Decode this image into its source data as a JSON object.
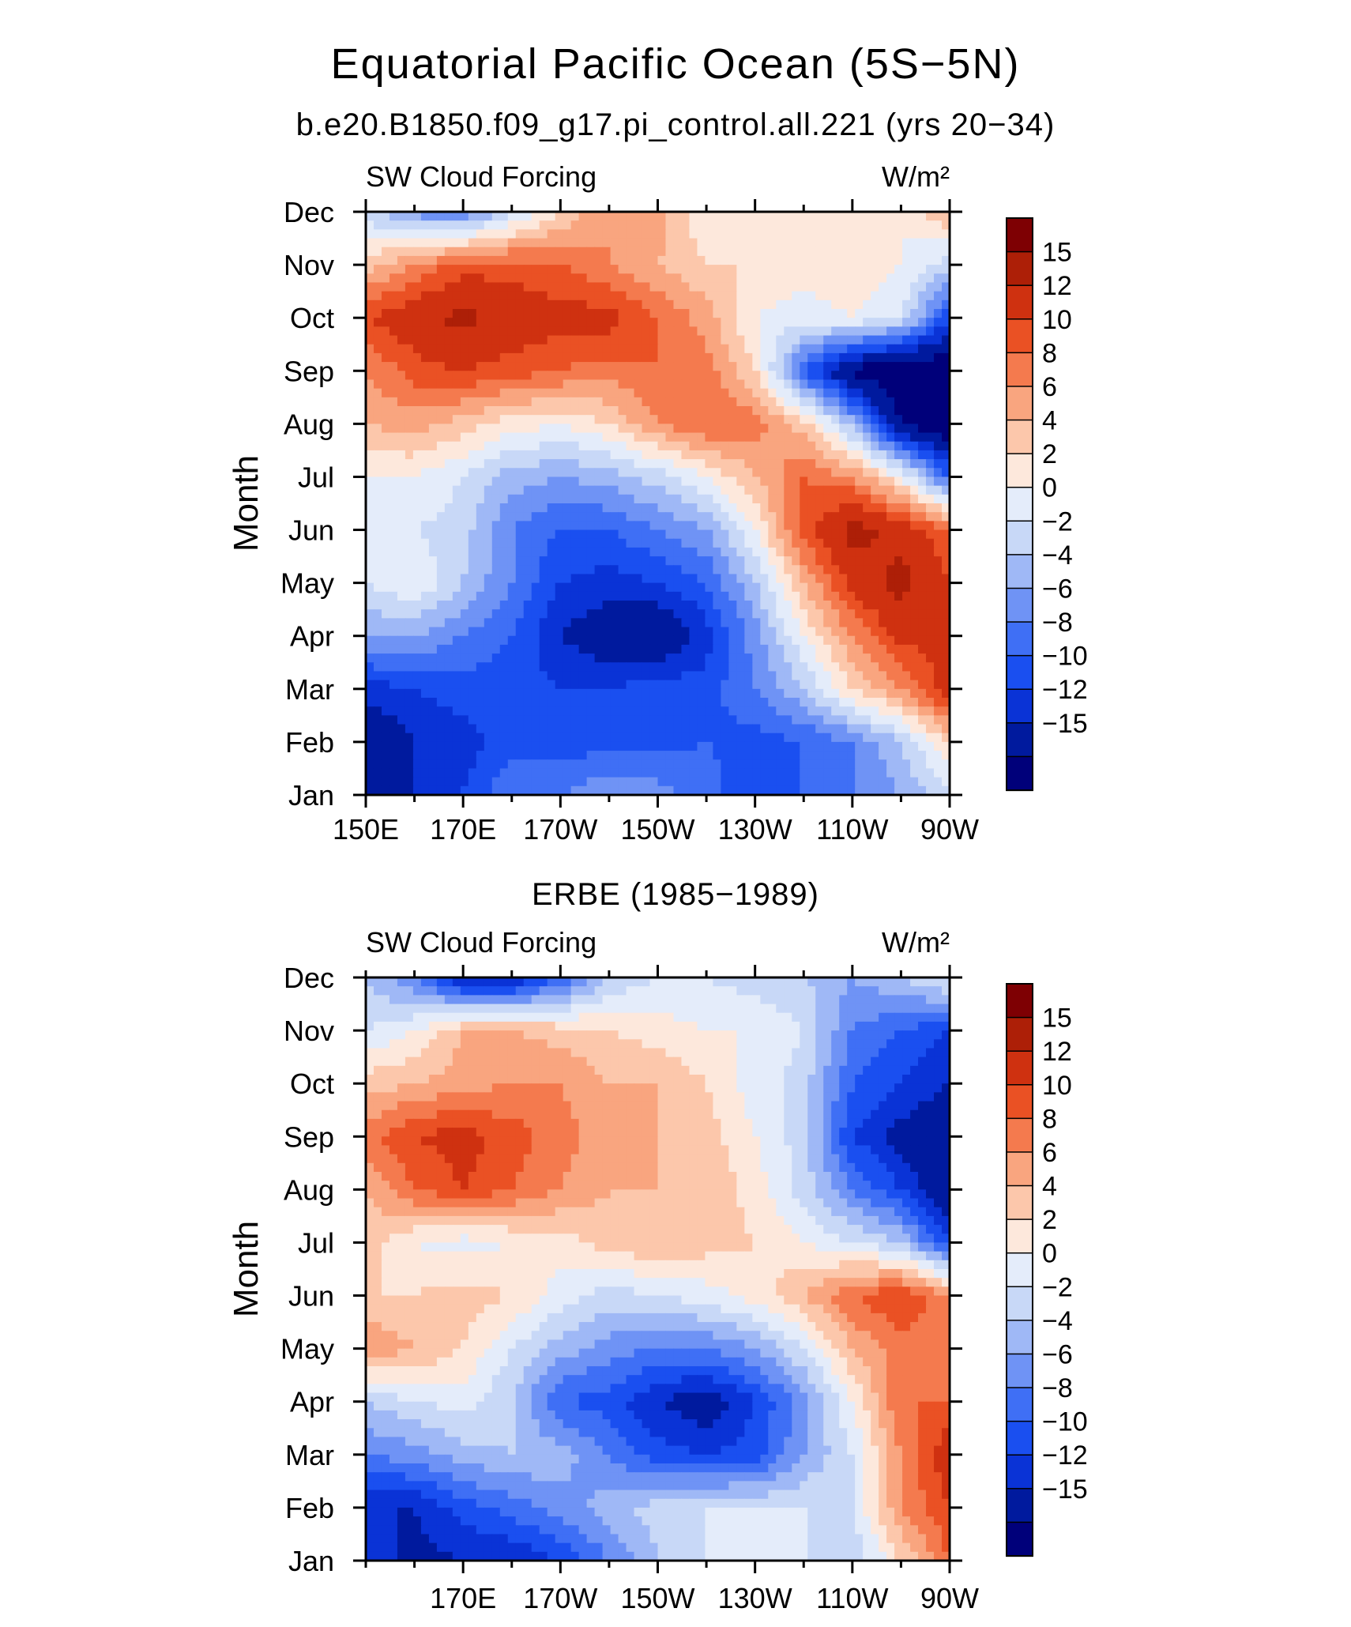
{
  "figure": {
    "title": "Equatorial Pacific Ocean (5S−5N)",
    "subtitle": "b.e20.B1850.f09_g17.pi_control.all.221 (yrs 20−34)",
    "second_panel_title": "ERBE (1985−1989)"
  },
  "chart_data": [
    {
      "type": "heatmap",
      "name": "model",
      "title": "b.e20.B1850.f09_g17.pi_control.all.221 (yrs 20−34)",
      "left_string": "SW Cloud Forcing",
      "right_string": "W/m²",
      "xlabel": "",
      "ylabel": "Month",
      "x_ticklabels": [
        "150E",
        "170E",
        "170W",
        "150W",
        "130W",
        "110W",
        "90W"
      ],
      "x_ticks": [
        150,
        170,
        190,
        210,
        230,
        250,
        270
      ],
      "x_range": [
        150,
        270
      ],
      "y_ticklabels": [
        "Jan",
        "Feb",
        "Mar",
        "Apr",
        "May",
        "Jun",
        "Jul",
        "Aug",
        "Sep",
        "Oct",
        "Nov",
        "Dec"
      ],
      "y_range": [
        1,
        12
      ],
      "x": [
        150,
        160,
        170,
        180,
        190,
        200,
        210,
        220,
        230,
        240,
        250,
        260,
        270
      ],
      "months": [
        "Jan",
        "Feb",
        "Mar",
        "Apr",
        "May",
        "Jun",
        "Jul",
        "Aug",
        "Sep",
        "Oct",
        "Nov",
        "Dec"
      ],
      "values": [
        [
          -13,
          -12,
          -10,
          -6,
          -6,
          -4,
          -5,
          -7,
          -10,
          -8,
          -6,
          -4,
          0
        ],
        [
          -15,
          -12,
          -11,
          -9,
          -9,
          -9,
          -9,
          -8,
          -9,
          -8,
          -6,
          -2,
          4
        ],
        [
          -11,
          -10,
          -9,
          -9,
          -10,
          -10,
          -9,
          -9,
          -6,
          -2,
          4,
          8,
          14
        ],
        [
          -4,
          -4,
          -6,
          -8,
          -12,
          -14,
          -15,
          -11,
          -5,
          2,
          8,
          13,
          12
        ],
        [
          0,
          2,
          -2,
          -6,
          -10,
          -11,
          -10,
          -8,
          -2,
          6,
          13,
          16,
          12
        ],
        [
          1,
          0,
          -1,
          -6,
          -8,
          -8,
          -6,
          -4,
          2,
          11,
          16,
          14,
          10
        ],
        [
          2,
          2,
          0,
          -3,
          -4,
          -3,
          -1,
          2,
          6,
          10,
          8,
          2,
          -8
        ],
        [
          6,
          7,
          5,
          3,
          2,
          4,
          8,
          10,
          9,
          5,
          -3,
          -15,
          -18
        ],
        [
          8,
          11,
          12,
          11,
          10,
          9,
          10,
          9,
          4,
          -8,
          -16,
          -18,
          -18
        ],
        [
          12,
          14,
          16,
          14,
          13,
          13,
          10,
          7,
          2,
          1,
          2,
          0,
          -10
        ],
        [
          5,
          8,
          11,
          11,
          10,
          8,
          6,
          4,
          4,
          3,
          4,
          2,
          -1
        ],
        [
          -1,
          -5,
          -6,
          -1,
          4,
          8,
          7,
          2,
          2,
          2,
          3,
          2,
          6
        ]
      ],
      "contour_levels": [
        -15,
        -12,
        -10,
        -8,
        -6,
        -4,
        -2,
        0,
        2,
        4,
        6,
        8,
        10,
        12,
        15
      ],
      "colorbar_labels": [
        "15",
        "12",
        "10",
        "8",
        "6",
        "4",
        "2",
        "0",
        "−2",
        "−4",
        "−6",
        "−8",
        "−10",
        "−12",
        "−15"
      ],
      "colors": [
        "#00007a",
        "#001a9e",
        "#0a33d6",
        "#1a4ff0",
        "#3f6ff5",
        "#6f93f5",
        "#9fb8f6",
        "#c8d8f7",
        "#e4ecfa",
        "#fde8dc",
        "#fcc7ab",
        "#f9a57f",
        "#f47a4e",
        "#ea5124",
        "#cf3110",
        "#ad1f07",
        "#7e0003"
      ]
    },
    {
      "type": "heatmap",
      "name": "erbe",
      "title": "ERBE (1985−1989)",
      "left_string": "SW Cloud Forcing",
      "right_string": "W/m²",
      "xlabel": "",
      "ylabel": "Month",
      "x_ticklabels": [
        "170E",
        "170W",
        "150W",
        "130W",
        "110W",
        "90W"
      ],
      "x_ticks": [
        170,
        190,
        210,
        230,
        250,
        270
      ],
      "x_range": [
        150,
        270
      ],
      "y_ticklabels": [
        "Jan",
        "Feb",
        "Mar",
        "Apr",
        "May",
        "Jun",
        "Jul",
        "Aug",
        "Sep",
        "Oct",
        "Nov",
        "Dec"
      ],
      "y_range": [
        1,
        12
      ],
      "x": [
        150,
        160,
        170,
        180,
        190,
        200,
        210,
        220,
        230,
        240,
        250,
        260,
        270
      ],
      "months": [
        "Jan",
        "Feb",
        "Mar",
        "Apr",
        "May",
        "Jun",
        "Jul",
        "Aug",
        "Sep",
        "Oct",
        "Nov",
        "Dec"
      ],
      "values": [
        [
          -10,
          -13,
          -12,
          -12,
          -10,
          -6,
          -2,
          0,
          1,
          0,
          -2,
          4,
          10
        ],
        [
          -12,
          -12,
          -9,
          -7,
          -5,
          -3,
          -1,
          0,
          0,
          0,
          0,
          8,
          12
        ],
        [
          -6,
          -5,
          -3,
          -2,
          -3,
          -6,
          -9,
          -10,
          -9,
          -4,
          0,
          8,
          14
        ],
        [
          -2,
          0,
          1,
          -2,
          -8,
          -9,
          -12,
          -14,
          -10,
          -5,
          2,
          10,
          10
        ],
        [
          8,
          6,
          4,
          0,
          -3,
          -5,
          -6,
          -6,
          -4,
          0,
          6,
          9,
          10
        ],
        [
          4,
          4,
          5,
          4,
          1,
          -1,
          0,
          1,
          3,
          6,
          10,
          12,
          8
        ],
        [
          5,
          2,
          1,
          2,
          3,
          5,
          6,
          5,
          4,
          2,
          0,
          -2,
          -10
        ],
        [
          6,
          10,
          12,
          10,
          8,
          6,
          6,
          6,
          3,
          -1,
          -6,
          -10,
          -15
        ],
        [
          9,
          12,
          13,
          11,
          9,
          7,
          6,
          5,
          2,
          -1,
          -10,
          -13,
          -15
        ],
        [
          5,
          6,
          7,
          8,
          8,
          6,
          6,
          4,
          1,
          -1,
          -8,
          -10,
          -12
        ],
        [
          0,
          2,
          6,
          6,
          5,
          4,
          3,
          2,
          2,
          0,
          -6,
          -8,
          -10
        ],
        [
          -2,
          -6,
          -13,
          -13,
          -8,
          -2,
          0,
          0,
          -1,
          -2,
          -4,
          -2,
          1
        ]
      ],
      "contour_levels": [
        -15,
        -12,
        -10,
        -8,
        -6,
        -4,
        -2,
        0,
        2,
        4,
        6,
        8,
        10,
        12,
        15
      ],
      "colorbar_labels": [
        "15",
        "12",
        "10",
        "8",
        "6",
        "4",
        "2",
        "0",
        "−2",
        "−4",
        "−6",
        "−8",
        "−10",
        "−12",
        "−15"
      ],
      "colors": [
        "#00007a",
        "#001a9e",
        "#0a33d6",
        "#1a4ff0",
        "#3f6ff5",
        "#6f93f5",
        "#9fb8f6",
        "#c8d8f7",
        "#e4ecfa",
        "#fde8dc",
        "#fcc7ab",
        "#f9a57f",
        "#f47a4e",
        "#ea5124",
        "#cf3110",
        "#ad1f07",
        "#7e0003"
      ]
    }
  ]
}
